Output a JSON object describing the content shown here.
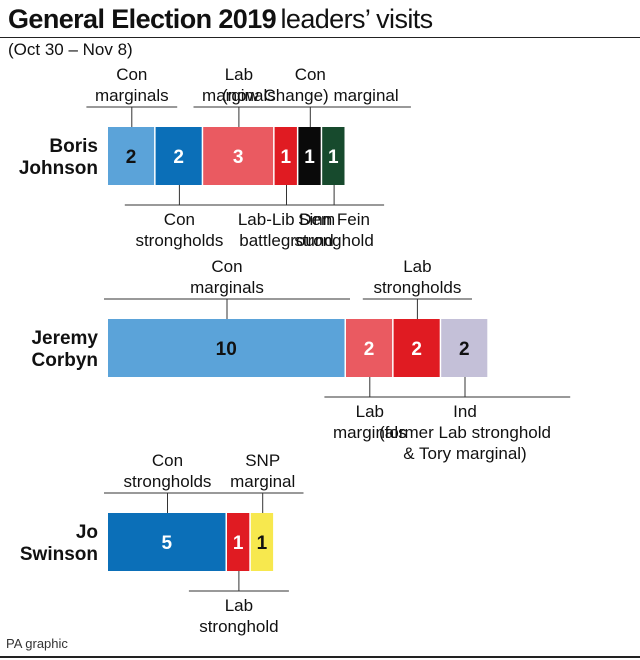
{
  "title_bold": "General Election 2019",
  "title_rest": "leaders’ visits",
  "subtitle": "(Oct 30 – Nov 8)",
  "credit": "PA graphic",
  "chart_data": {
    "type": "bar",
    "stacked": true,
    "orientation": "horizontal",
    "rows": [
      {
        "name": [
          "Boris",
          "Johnson"
        ],
        "segments": [
          {
            "value": 2,
            "category": "Con marginals",
            "color": "#5ba3d9",
            "text_color": "#111111"
          },
          {
            "value": 2,
            "category": "Con strongholds",
            "color": "#0b6fb8",
            "text_color": "#ffffff"
          },
          {
            "value": 3,
            "category": "Lab marginals",
            "color": "#ea5a61",
            "text_color": "#ffffff"
          },
          {
            "value": 1,
            "category": "Lab-Lib Dem battleground",
            "color": "#e01b22",
            "text_color": "#ffffff"
          },
          {
            "value": 1,
            "category": "Con (now Change) marginal",
            "color": "#0a0a0a",
            "text_color": "#ffffff"
          },
          {
            "value": 1,
            "category": "Sinn Fein stronghold",
            "color": "#174a2d",
            "text_color": "#ffffff"
          }
        ],
        "annotations": [
          {
            "text": [
              "Con",
              "marginals"
            ],
            "side": "above",
            "segments": [
              0
            ]
          },
          {
            "text": [
              "Lab",
              "marginals"
            ],
            "side": "above",
            "segments": [
              2
            ]
          },
          {
            "text": [
              "Con",
              "(now Change) marginal"
            ],
            "side": "above",
            "segments": [
              4
            ]
          },
          {
            "text": [
              "Con",
              "strongholds"
            ],
            "side": "below",
            "segments": [
              1
            ]
          },
          {
            "text": [
              "Lab-Lib Dem",
              "battleground"
            ],
            "side": "below",
            "segments": [
              3
            ]
          },
          {
            "text": [
              "Sinn Fein",
              "stronghold"
            ],
            "side": "below",
            "segments": [
              5
            ]
          }
        ]
      },
      {
        "name": [
          "Jeremy",
          "Corbyn"
        ],
        "segments": [
          {
            "value": 10,
            "category": "Con marginals",
            "color": "#5ba3d9",
            "text_color": "#111111"
          },
          {
            "value": 2,
            "category": "Lab marginals",
            "color": "#ea5a61",
            "text_color": "#ffffff"
          },
          {
            "value": 2,
            "category": "Lab strongholds",
            "color": "#e01b22",
            "text_color": "#ffffff"
          },
          {
            "value": 2,
            "category": "Ind (former Lab stronghold & Tory marginal)",
            "color": "#c4c0d8",
            "text_color": "#111111"
          }
        ],
        "annotations": [
          {
            "text": [
              "Con",
              "marginals"
            ],
            "side": "above",
            "segments": [
              0
            ]
          },
          {
            "text": [
              "Lab",
              "strongholds"
            ],
            "side": "above",
            "segments": [
              2
            ]
          },
          {
            "text": [
              "Lab",
              "marginals"
            ],
            "side": "below",
            "segments": [
              1
            ]
          },
          {
            "text": [
              "Ind",
              "(former Lab stronghold",
              "& Tory marginal)"
            ],
            "side": "below",
            "segments": [
              3
            ]
          }
        ]
      },
      {
        "name": [
          "Jo",
          "Swinson"
        ],
        "segments": [
          {
            "value": 5,
            "category": "Con strongholds",
            "color": "#0b6fb8",
            "text_color": "#ffffff"
          },
          {
            "value": 1,
            "category": "Lab stronghold",
            "color": "#e01b22",
            "text_color": "#ffffff"
          },
          {
            "value": 1,
            "category": "SNP marginal",
            "color": "#f7e84e",
            "text_color": "#111111"
          }
        ],
        "annotations": [
          {
            "text": [
              "Con",
              "strongholds"
            ],
            "side": "above",
            "segments": [
              0
            ]
          },
          {
            "text": [
              "SNP",
              "marginal"
            ],
            "side": "above",
            "segments": [
              2
            ]
          },
          {
            "text": [
              "Lab",
              "stronghold"
            ],
            "side": "below",
            "segments": [
              1
            ]
          }
        ]
      }
    ]
  }
}
